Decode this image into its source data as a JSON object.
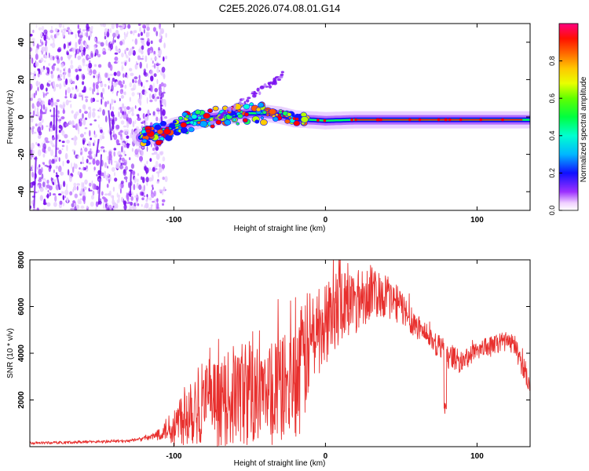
{
  "title": "C2E5.2026.074.08.01.G14",
  "chart_data": [
    {
      "type": "heatmap",
      "name": "spectrogram",
      "xlabel": "Height of straight line (km)",
      "ylabel": "Frequency (Hz)",
      "xlim": [
        -195,
        135
      ],
      "ylim": [
        -50,
        50
      ],
      "xticks": [
        -100,
        0,
        100
      ],
      "yticks": [
        -40,
        -20,
        0,
        20,
        40
      ],
      "colorbar": {
        "label": "Normalized spectral amplitude",
        "range": [
          0.0,
          1.0
        ],
        "ticks": [
          0.0,
          0.2,
          0.4,
          0.6,
          0.8
        ],
        "tick_labels": [
          "0.0",
          "0.2",
          "0.4",
          "0.6",
          "0.8"
        ]
      },
      "signal_trace": {
        "x": [
          -122,
          -110,
          -100,
          -90,
          -80,
          -70,
          -60,
          -50,
          -40,
          -30,
          -20,
          -10,
          0,
          20,
          40,
          60,
          80,
          100,
          120,
          135
        ],
        "y": [
          -11,
          -9,
          -5,
          -3,
          -1,
          0,
          1,
          2,
          2,
          1,
          -1,
          -1.5,
          -2,
          -1.5,
          -1.5,
          -1.5,
          -1.5,
          -1.5,
          -1.5,
          -1.5
        ]
      },
      "secondary_trace": {
        "x": [
          -75,
          -65,
          -55,
          -45,
          -35,
          -28
        ],
        "y": [
          -2,
          3,
          8,
          13,
          18,
          23
        ]
      },
      "noise_region_x": [
        -195,
        -105
      ]
    },
    {
      "type": "line",
      "name": "snr",
      "xlabel": "Height of straight line (km)",
      "ylabel": "SNR (10 * v/v)",
      "xlim": [
        -195,
        135
      ],
      "ylim": [
        0,
        8000
      ],
      "xticks": [
        -100,
        0,
        100
      ],
      "yticks": [
        2000,
        4000,
        6000,
        8000
      ],
      "color": "#e8302e",
      "envelope": {
        "x": [
          -195,
          -160,
          -130,
          -115,
          -100,
          -90,
          -80,
          -70,
          -60,
          -50,
          -40,
          -30,
          -20,
          -15,
          -10,
          -5,
          0,
          5,
          10,
          20,
          30,
          40,
          50,
          60,
          70,
          80,
          90,
          100,
          110,
          115,
          120,
          125,
          130,
          135
        ],
        "y": [
          150,
          200,
          250,
          400,
          900,
          1700,
          2000,
          1800,
          2200,
          2400,
          2000,
          2500,
          2700,
          3500,
          4500,
          5000,
          5200,
          5800,
          6000,
          6300,
          6600,
          6500,
          6000,
          5200,
          4600,
          4000,
          3600,
          4200,
          4300,
          4500,
          4500,
          4300,
          3500,
          2600
        ]
      },
      "spike_amplitude": [
        0.05,
        0.05,
        0.1,
        0.3,
        0.9,
        1,
        1,
        1,
        1,
        1,
        1,
        0.9,
        0.85,
        0.8,
        0.5,
        0.4,
        0.35,
        0.3,
        0.25,
        0.22,
        0.18,
        0.15,
        0.12,
        0.12,
        0.1,
        0.15,
        0.12,
        0.1,
        0.1,
        0.1,
        0.1,
        0.1,
        0.15,
        0.15
      ]
    }
  ]
}
